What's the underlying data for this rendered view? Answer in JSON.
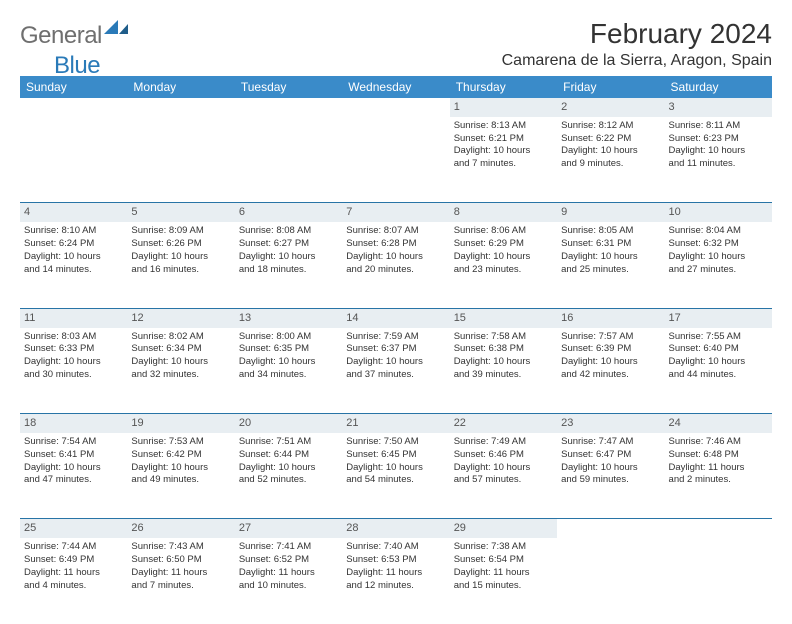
{
  "logo": {
    "text1": "General",
    "text2": "Blue"
  },
  "title": "February 2024",
  "location": "Camarena de la Sierra, Aragon, Spain",
  "colors": {
    "header_bg": "#3a8bc9",
    "header_text": "#ffffff",
    "daynum_bg": "#e8eef2",
    "border": "#2874a6",
    "logo_gray": "#6f6f6f",
    "logo_blue": "#2a7ab8"
  },
  "weekdays": [
    "Sunday",
    "Monday",
    "Tuesday",
    "Wednesday",
    "Thursday",
    "Friday",
    "Saturday"
  ],
  "weeks": [
    {
      "nums": [
        "",
        "",
        "",
        "",
        "1",
        "2",
        "3"
      ],
      "details": [
        null,
        null,
        null,
        null,
        {
          "sunrise": "Sunrise: 8:13 AM",
          "sunset": "Sunset: 6:21 PM",
          "day1": "Daylight: 10 hours",
          "day2": "and 7 minutes."
        },
        {
          "sunrise": "Sunrise: 8:12 AM",
          "sunset": "Sunset: 6:22 PM",
          "day1": "Daylight: 10 hours",
          "day2": "and 9 minutes."
        },
        {
          "sunrise": "Sunrise: 8:11 AM",
          "sunset": "Sunset: 6:23 PM",
          "day1": "Daylight: 10 hours",
          "day2": "and 11 minutes."
        }
      ]
    },
    {
      "nums": [
        "4",
        "5",
        "6",
        "7",
        "8",
        "9",
        "10"
      ],
      "details": [
        {
          "sunrise": "Sunrise: 8:10 AM",
          "sunset": "Sunset: 6:24 PM",
          "day1": "Daylight: 10 hours",
          "day2": "and 14 minutes."
        },
        {
          "sunrise": "Sunrise: 8:09 AM",
          "sunset": "Sunset: 6:26 PM",
          "day1": "Daylight: 10 hours",
          "day2": "and 16 minutes."
        },
        {
          "sunrise": "Sunrise: 8:08 AM",
          "sunset": "Sunset: 6:27 PM",
          "day1": "Daylight: 10 hours",
          "day2": "and 18 minutes."
        },
        {
          "sunrise": "Sunrise: 8:07 AM",
          "sunset": "Sunset: 6:28 PM",
          "day1": "Daylight: 10 hours",
          "day2": "and 20 minutes."
        },
        {
          "sunrise": "Sunrise: 8:06 AM",
          "sunset": "Sunset: 6:29 PM",
          "day1": "Daylight: 10 hours",
          "day2": "and 23 minutes."
        },
        {
          "sunrise": "Sunrise: 8:05 AM",
          "sunset": "Sunset: 6:31 PM",
          "day1": "Daylight: 10 hours",
          "day2": "and 25 minutes."
        },
        {
          "sunrise": "Sunrise: 8:04 AM",
          "sunset": "Sunset: 6:32 PM",
          "day1": "Daylight: 10 hours",
          "day2": "and 27 minutes."
        }
      ]
    },
    {
      "nums": [
        "11",
        "12",
        "13",
        "14",
        "15",
        "16",
        "17"
      ],
      "details": [
        {
          "sunrise": "Sunrise: 8:03 AM",
          "sunset": "Sunset: 6:33 PM",
          "day1": "Daylight: 10 hours",
          "day2": "and 30 minutes."
        },
        {
          "sunrise": "Sunrise: 8:02 AM",
          "sunset": "Sunset: 6:34 PM",
          "day1": "Daylight: 10 hours",
          "day2": "and 32 minutes."
        },
        {
          "sunrise": "Sunrise: 8:00 AM",
          "sunset": "Sunset: 6:35 PM",
          "day1": "Daylight: 10 hours",
          "day2": "and 34 minutes."
        },
        {
          "sunrise": "Sunrise: 7:59 AM",
          "sunset": "Sunset: 6:37 PM",
          "day1": "Daylight: 10 hours",
          "day2": "and 37 minutes."
        },
        {
          "sunrise": "Sunrise: 7:58 AM",
          "sunset": "Sunset: 6:38 PM",
          "day1": "Daylight: 10 hours",
          "day2": "and 39 minutes."
        },
        {
          "sunrise": "Sunrise: 7:57 AM",
          "sunset": "Sunset: 6:39 PM",
          "day1": "Daylight: 10 hours",
          "day2": "and 42 minutes."
        },
        {
          "sunrise": "Sunrise: 7:55 AM",
          "sunset": "Sunset: 6:40 PM",
          "day1": "Daylight: 10 hours",
          "day2": "and 44 minutes."
        }
      ]
    },
    {
      "nums": [
        "18",
        "19",
        "20",
        "21",
        "22",
        "23",
        "24"
      ],
      "details": [
        {
          "sunrise": "Sunrise: 7:54 AM",
          "sunset": "Sunset: 6:41 PM",
          "day1": "Daylight: 10 hours",
          "day2": "and 47 minutes."
        },
        {
          "sunrise": "Sunrise: 7:53 AM",
          "sunset": "Sunset: 6:42 PM",
          "day1": "Daylight: 10 hours",
          "day2": "and 49 minutes."
        },
        {
          "sunrise": "Sunrise: 7:51 AM",
          "sunset": "Sunset: 6:44 PM",
          "day1": "Daylight: 10 hours",
          "day2": "and 52 minutes."
        },
        {
          "sunrise": "Sunrise: 7:50 AM",
          "sunset": "Sunset: 6:45 PM",
          "day1": "Daylight: 10 hours",
          "day2": "and 54 minutes."
        },
        {
          "sunrise": "Sunrise: 7:49 AM",
          "sunset": "Sunset: 6:46 PM",
          "day1": "Daylight: 10 hours",
          "day2": "and 57 minutes."
        },
        {
          "sunrise": "Sunrise: 7:47 AM",
          "sunset": "Sunset: 6:47 PM",
          "day1": "Daylight: 10 hours",
          "day2": "and 59 minutes."
        },
        {
          "sunrise": "Sunrise: 7:46 AM",
          "sunset": "Sunset: 6:48 PM",
          "day1": "Daylight: 11 hours",
          "day2": "and 2 minutes."
        }
      ]
    },
    {
      "nums": [
        "25",
        "26",
        "27",
        "28",
        "29",
        "",
        ""
      ],
      "details": [
        {
          "sunrise": "Sunrise: 7:44 AM",
          "sunset": "Sunset: 6:49 PM",
          "day1": "Daylight: 11 hours",
          "day2": "and 4 minutes."
        },
        {
          "sunrise": "Sunrise: 7:43 AM",
          "sunset": "Sunset: 6:50 PM",
          "day1": "Daylight: 11 hours",
          "day2": "and 7 minutes."
        },
        {
          "sunrise": "Sunrise: 7:41 AM",
          "sunset": "Sunset: 6:52 PM",
          "day1": "Daylight: 11 hours",
          "day2": "and 10 minutes."
        },
        {
          "sunrise": "Sunrise: 7:40 AM",
          "sunset": "Sunset: 6:53 PM",
          "day1": "Daylight: 11 hours",
          "day2": "and 12 minutes."
        },
        {
          "sunrise": "Sunrise: 7:38 AM",
          "sunset": "Sunset: 6:54 PM",
          "day1": "Daylight: 11 hours",
          "day2": "and 15 minutes."
        },
        null,
        null
      ]
    }
  ]
}
